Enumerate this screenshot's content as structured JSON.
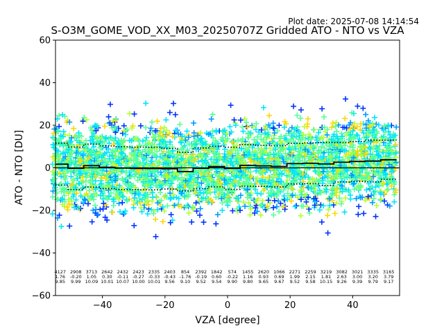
{
  "chart_data": {
    "type": "scatter",
    "plot_date": "Plot date: 2025-07-08 14:14:54",
    "title": "S-O3M_GOME_VOD_XX_M03_20250707Z Gridded ATO - NTO vs VZA",
    "xlabel": "VZA [degree]",
    "ylabel": "ATO - NTO [DU]",
    "xlim": [
      -55,
      55
    ],
    "ylim": [
      -60,
      60
    ],
    "xticks": [
      -40,
      -20,
      0,
      20,
      40
    ],
    "yticks": [
      -60,
      -40,
      -20,
      0,
      20,
      40,
      60
    ],
    "grid": false,
    "marker": "+",
    "color_scale": [
      "#0033ff",
      "#0099ff",
      "#00e5ff",
      "#55ff99",
      "#b3ff33",
      "#ffd700"
    ],
    "series": [
      {
        "role": "mean",
        "style": "solid",
        "color": "#000000",
        "x": [
          -53.5,
          -48.5,
          -43.5,
          -38.5,
          -33.5,
          -28.5,
          -23.5,
          -18.5,
          -13.5,
          -8.5,
          -3.5,
          1.5,
          6.5,
          11.5,
          16.5,
          21.5,
          26.5,
          31.5,
          36.5,
          41.5,
          46.5,
          51.5
        ],
        "y": [
          1.76,
          -0.2,
          1.05,
          0.3,
          -0.11,
          -0.27,
          -0.33,
          -0.43,
          -1.76,
          -0.19,
          0.6,
          -0.22,
          1.16,
          0.93,
          0.69,
          1.99,
          2.15,
          1.81,
          2.63,
          3.0,
          3.2,
          3.79
        ]
      },
      {
        "role": "mean_plus_std",
        "style": "dotted",
        "color": "#000000",
        "x": [
          -53.5,
          -48.5,
          -43.5,
          -38.5,
          -33.5,
          -28.5,
          -23.5,
          -18.5,
          -13.5,
          -8.5,
          -3.5,
          1.5,
          6.5,
          11.5,
          16.5,
          21.5,
          26.5,
          31.5,
          36.5,
          41.5,
          46.5,
          51.5
        ],
        "y": [
          11.61,
          9.79,
          11.14,
          10.31,
          9.96,
          9.73,
          9.68,
          9.13,
          7.34,
          9.33,
          10.14,
          9.68,
          10.96,
          10.58,
          10.36,
          11.51,
          11.73,
          11.96,
          11.89,
          12.39,
          12.99,
          12.96
        ]
      },
      {
        "role": "mean_minus_std",
        "style": "dotted",
        "color": "#000000",
        "x": [
          -53.5,
          -48.5,
          -43.5,
          -38.5,
          -33.5,
          -28.5,
          -23.5,
          -18.5,
          -13.5,
          -8.5,
          -3.5,
          1.5,
          6.5,
          11.5,
          16.5,
          21.5,
          26.5,
          31.5,
          36.5,
          41.5,
          46.5,
          51.5
        ],
        "y": [
          -8.09,
          -10.19,
          -9.04,
          -9.71,
          -10.18,
          -10.27,
          -10.34,
          -9.99,
          -10.86,
          -9.71,
          -8.94,
          -10.12,
          -8.64,
          -8.72,
          -8.98,
          -7.53,
          -7.43,
          -8.34,
          -6.63,
          -6.39,
          -6.59,
          -5.38
        ]
      }
    ],
    "bins": [
      {
        "x": -53.5,
        "count": "4127",
        "mean": "1.76",
        "std": "9.85"
      },
      {
        "x": -48.5,
        "count": "2908",
        "mean": "-0.20",
        "std": "9.99"
      },
      {
        "x": -43.5,
        "count": "3713",
        "mean": "1.05",
        "std": "10.09"
      },
      {
        "x": -38.5,
        "count": "2642",
        "mean": "0.30",
        "std": "10.01"
      },
      {
        "x": -33.5,
        "count": "2432",
        "mean": "-0.11",
        "std": "10.07"
      },
      {
        "x": -28.5,
        "count": "2423",
        "mean": "-0.27",
        "std": "10.00"
      },
      {
        "x": -23.5,
        "count": "2335",
        "mean": "-0.33",
        "std": "10.01"
      },
      {
        "x": -18.5,
        "count": "2403",
        "mean": "-0.43",
        "std": "9.56"
      },
      {
        "x": -13.5,
        "count": "854",
        "mean": "-1.76",
        "std": "9.10"
      },
      {
        "x": -8.5,
        "count": "2392",
        "mean": "-0.19",
        "std": "9.52"
      },
      {
        "x": -3.5,
        "count": "1842",
        "mean": "0.60",
        "std": "9.54"
      },
      {
        "x": 1.5,
        "count": "574",
        "mean": "-0.22",
        "std": "9.90"
      },
      {
        "x": 6.5,
        "count": "1455",
        "mean": "1.16",
        "std": "9.80"
      },
      {
        "x": 11.5,
        "count": "2620",
        "mean": "0.93",
        "std": "9.65"
      },
      {
        "x": 16.5,
        "count": "1066",
        "mean": "0.69",
        "std": "9.67"
      },
      {
        "x": 21.5,
        "count": "2271",
        "mean": "1.99",
        "std": "9.52"
      },
      {
        "x": 26.5,
        "count": "2259",
        "mean": "2.15",
        "std": "9.58"
      },
      {
        "x": 31.5,
        "count": "3219",
        "mean": "1.81",
        "std": "10.15"
      },
      {
        "x": 36.5,
        "count": "3082",
        "mean": "2.63",
        "std": "9.26"
      },
      {
        "x": 41.5,
        "count": "3021",
        "mean": "3.00",
        "std": "9.39"
      },
      {
        "x": 46.5,
        "count": "3335",
        "mean": "3.20",
        "std": "9.79"
      },
      {
        "x": 51.5,
        "count": "3165",
        "mean": "3.79",
        "std": "9.17"
      }
    ]
  }
}
